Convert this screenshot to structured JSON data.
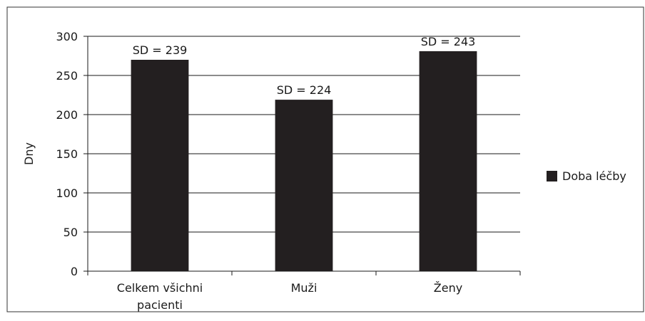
{
  "chart_data": {
    "type": "bar",
    "categories": [
      [
        "Celkem všichni",
        "pacienti"
      ],
      [
        "Muži"
      ],
      [
        "Ženy"
      ]
    ],
    "series": [
      {
        "name": "Doba léčby",
        "values": [
          270,
          219,
          281
        ],
        "color": "#231f20"
      }
    ],
    "annotations": [
      "SD = 239",
      "SD = 224",
      "SD = 243"
    ],
    "ylabel": "Dny",
    "xlabel": "",
    "ylim": [
      0,
      300
    ],
    "yticks": [
      0,
      50,
      100,
      150,
      200,
      250,
      300
    ],
    "grid": true,
    "legend_position": "right"
  }
}
